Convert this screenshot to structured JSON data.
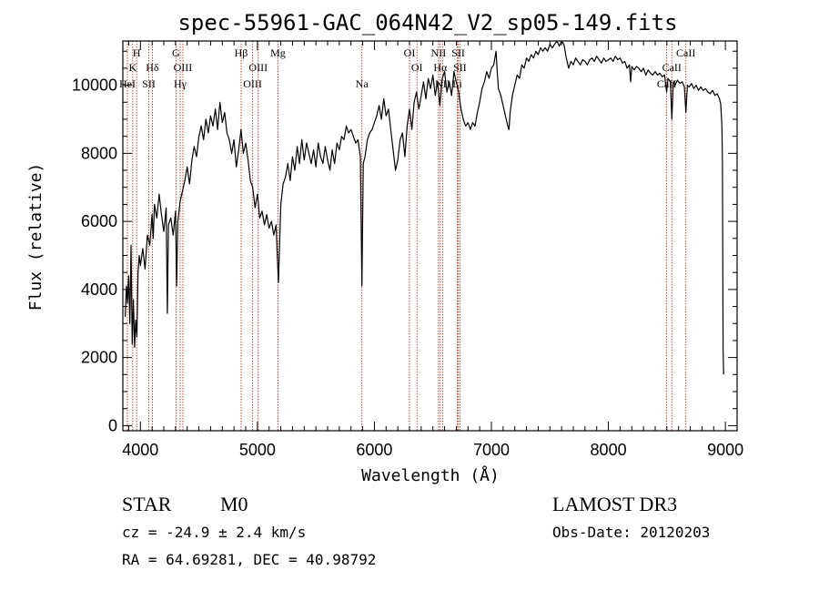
{
  "chart_data": {
    "type": "line",
    "title": "spec-55961-GAC_064N42_V2_sp05-149.fits",
    "xlabel": "Wavelength (Å)",
    "ylabel": "Flux (relative)",
    "xlim": [
      3850,
      9100
    ],
    "ylim": [
      -150,
      11300
    ],
    "x_ticks": [
      4000,
      5000,
      6000,
      7000,
      8000,
      9000
    ],
    "y_ticks": [
      0,
      2000,
      4000,
      6000,
      8000,
      10000
    ],
    "grid": false,
    "series": [
      {
        "color": "#000000",
        "points": [
          [
            3870,
            3200
          ],
          [
            3880,
            4100
          ],
          [
            3890,
            3600
          ],
          [
            3900,
            4400
          ],
          [
            3910,
            3000
          ],
          [
            3920,
            5300
          ],
          [
            3930,
            2400
          ],
          [
            3940,
            3700
          ],
          [
            3950,
            2300
          ],
          [
            3960,
            3100
          ],
          [
            3970,
            2600
          ],
          [
            3980,
            4500
          ],
          [
            3990,
            5000
          ],
          [
            4000,
            4700
          ],
          [
            4020,
            5200
          ],
          [
            4040,
            4600
          ],
          [
            4060,
            5600
          ],
          [
            4080,
            5300
          ],
          [
            4100,
            6200
          ],
          [
            4110,
            5500
          ],
          [
            4120,
            6500
          ],
          [
            4140,
            6100
          ],
          [
            4160,
            6800
          ],
          [
            4180,
            6200
          ],
          [
            4200,
            5700
          ],
          [
            4220,
            6400
          ],
          [
            4230,
            3300
          ],
          [
            4240,
            5900
          ],
          [
            4260,
            6100
          ],
          [
            4280,
            5600
          ],
          [
            4300,
            6300
          ],
          [
            4310,
            4100
          ],
          [
            4320,
            6000
          ],
          [
            4340,
            6600
          ],
          [
            4360,
            6900
          ],
          [
            4380,
            7200
          ],
          [
            4400,
            7600
          ],
          [
            4420,
            7100
          ],
          [
            4440,
            7800
          ],
          [
            4460,
            8200
          ],
          [
            4480,
            7900
          ],
          [
            4500,
            8500
          ],
          [
            4520,
            8800
          ],
          [
            4540,
            8400
          ],
          [
            4560,
            9000
          ],
          [
            4580,
            8600
          ],
          [
            4600,
            9100
          ],
          [
            4620,
            8800
          ],
          [
            4640,
            9300
          ],
          [
            4660,
            8700
          ],
          [
            4680,
            9500
          ],
          [
            4700,
            8900
          ],
          [
            4720,
            9200
          ],
          [
            4740,
            8600
          ],
          [
            4760,
            8400
          ],
          [
            4780,
            8000
          ],
          [
            4800,
            8400
          ],
          [
            4820,
            7600
          ],
          [
            4840,
            8100
          ],
          [
            4860,
            8700
          ],
          [
            4880,
            8000
          ],
          [
            4900,
            8300
          ],
          [
            4920,
            7800
          ],
          [
            4940,
            7200
          ],
          [
            4960,
            7000
          ],
          [
            4980,
            6400
          ],
          [
            5000,
            6800
          ],
          [
            5020,
            6100
          ],
          [
            5040,
            6300
          ],
          [
            5060,
            5900
          ],
          [
            5080,
            6200
          ],
          [
            5100,
            5800
          ],
          [
            5120,
            6000
          ],
          [
            5140,
            5600
          ],
          [
            5160,
            5900
          ],
          [
            5170,
            5000
          ],
          [
            5180,
            4200
          ],
          [
            5190,
            5400
          ],
          [
            5200,
            6500
          ],
          [
            5220,
            7100
          ],
          [
            5240,
            7300
          ],
          [
            5260,
            7700
          ],
          [
            5280,
            7200
          ],
          [
            5300,
            7900
          ],
          [
            5320,
            7500
          ],
          [
            5340,
            8200
          ],
          [
            5360,
            7700
          ],
          [
            5380,
            8400
          ],
          [
            5400,
            7800
          ],
          [
            5420,
            8300
          ],
          [
            5440,
            8000
          ],
          [
            5460,
            7700
          ],
          [
            5480,
            8100
          ],
          [
            5500,
            7600
          ],
          [
            5520,
            8300
          ],
          [
            5540,
            7900
          ],
          [
            5560,
            7700
          ],
          [
            5580,
            8200
          ],
          [
            5600,
            7800
          ],
          [
            5620,
            7500
          ],
          [
            5640,
            8100
          ],
          [
            5660,
            7700
          ],
          [
            5680,
            8300
          ],
          [
            5700,
            8100
          ],
          [
            5720,
            8500
          ],
          [
            5740,
            8400
          ],
          [
            5760,
            8800
          ],
          [
            5780,
            8600
          ],
          [
            5800,
            8700
          ],
          [
            5820,
            8500
          ],
          [
            5840,
            8300
          ],
          [
            5860,
            8400
          ],
          [
            5880,
            7900
          ],
          [
            5893,
            4100
          ],
          [
            5905,
            7700
          ],
          [
            5920,
            7900
          ],
          [
            5940,
            8400
          ],
          [
            5960,
            8600
          ],
          [
            5980,
            8700
          ],
          [
            6000,
            8900
          ],
          [
            6020,
            9100
          ],
          [
            6040,
            9400
          ],
          [
            6060,
            9000
          ],
          [
            6080,
            9600
          ],
          [
            6100,
            9100
          ],
          [
            6120,
            9300
          ],
          [
            6140,
            8700
          ],
          [
            6160,
            8100
          ],
          [
            6180,
            7500
          ],
          [
            6200,
            7800
          ],
          [
            6220,
            8400
          ],
          [
            6240,
            8600
          ],
          [
            6260,
            7900
          ],
          [
            6280,
            8800
          ],
          [
            6300,
            9300
          ],
          [
            6320,
            8700
          ],
          [
            6340,
            9500
          ],
          [
            6360,
            9800
          ],
          [
            6380,
            9300
          ],
          [
            6400,
            9700
          ],
          [
            6420,
            10100
          ],
          [
            6440,
            9600
          ],
          [
            6460,
            10200
          ],
          [
            6480,
            9900
          ],
          [
            6500,
            10300
          ],
          [
            6520,
            9700
          ],
          [
            6540,
            10100
          ],
          [
            6560,
            9400
          ],
          [
            6580,
            10200
          ],
          [
            6600,
            10400
          ],
          [
            6620,
            9800
          ],
          [
            6640,
            10100
          ],
          [
            6660,
            9700
          ],
          [
            6680,
            10400
          ],
          [
            6700,
            10100
          ],
          [
            6720,
            9800
          ],
          [
            6740,
            9300
          ],
          [
            6760,
            9000
          ],
          [
            6780,
            8800
          ],
          [
            6800,
            8900
          ],
          [
            6820,
            8700
          ],
          [
            6840,
            8900
          ],
          [
            6860,
            8800
          ],
          [
            6880,
            9200
          ],
          [
            6900,
            9500
          ],
          [
            6920,
            9900
          ],
          [
            6940,
            10100
          ],
          [
            6960,
            10400
          ],
          [
            6980,
            10200
          ],
          [
            7000,
            10500
          ],
          [
            7020,
            10600
          ],
          [
            7040,
            11000
          ],
          [
            7050,
            10400
          ],
          [
            7060,
            9900
          ],
          [
            7080,
            9700
          ],
          [
            7100,
            9400
          ],
          [
            7120,
            9100
          ],
          [
            7140,
            8800
          ],
          [
            7150,
            8700
          ],
          [
            7160,
            9200
          ],
          [
            7180,
            9700
          ],
          [
            7200,
            10000
          ],
          [
            7220,
            10300
          ],
          [
            7240,
            10200
          ],
          [
            7260,
            10600
          ],
          [
            7280,
            10500
          ],
          [
            7300,
            10800
          ],
          [
            7320,
            10700
          ],
          [
            7340,
            10900
          ],
          [
            7360,
            10800
          ],
          [
            7380,
            11000
          ],
          [
            7400,
            10900
          ],
          [
            7420,
            11100
          ],
          [
            7440,
            11000
          ],
          [
            7460,
            11100
          ],
          [
            7480,
            11000
          ],
          [
            7500,
            11200
          ],
          [
            7520,
            11100
          ],
          [
            7540,
            11200
          ],
          [
            7560,
            11300
          ],
          [
            7580,
            11150
          ],
          [
            7600,
            11300
          ],
          [
            7620,
            11200
          ],
          [
            7640,
            10800
          ],
          [
            7660,
            10500
          ],
          [
            7680,
            10700
          ],
          [
            7700,
            10600
          ],
          [
            7720,
            10800
          ],
          [
            7740,
            10700
          ],
          [
            7760,
            10600
          ],
          [
            7780,
            10750
          ],
          [
            7800,
            10700
          ],
          [
            7820,
            10600
          ],
          [
            7840,
            10750
          ],
          [
            7860,
            10800
          ],
          [
            7880,
            10700
          ],
          [
            7900,
            10850
          ],
          [
            7920,
            10750
          ],
          [
            7940,
            10650
          ],
          [
            7960,
            10800
          ],
          [
            7980,
            10700
          ],
          [
            8000,
            10750
          ],
          [
            8020,
            10800
          ],
          [
            8040,
            10700
          ],
          [
            8060,
            10850
          ],
          [
            8080,
            10750
          ],
          [
            8100,
            10800
          ],
          [
            8120,
            10650
          ],
          [
            8140,
            10700
          ],
          [
            8160,
            10500
          ],
          [
            8180,
            10600
          ],
          [
            8190,
            10100
          ],
          [
            8200,
            10550
          ],
          [
            8220,
            10450
          ],
          [
            8240,
            10550
          ],
          [
            8260,
            10500
          ],
          [
            8280,
            10400
          ],
          [
            8300,
            10500
          ],
          [
            8320,
            10300
          ],
          [
            8340,
            10450
          ],
          [
            8360,
            10350
          ],
          [
            8380,
            10300
          ],
          [
            8400,
            10400
          ],
          [
            8420,
            10300
          ],
          [
            8440,
            10350
          ],
          [
            8460,
            10250
          ],
          [
            8480,
            10300
          ],
          [
            8498,
            9800
          ],
          [
            8510,
            10200
          ],
          [
            8530,
            10100
          ],
          [
            8542,
            9000
          ],
          [
            8555,
            10100
          ],
          [
            8570,
            10000
          ],
          [
            8590,
            10150
          ],
          [
            8610,
            10050
          ],
          [
            8630,
            10100
          ],
          [
            8650,
            9950
          ],
          [
            8662,
            9200
          ],
          [
            8675,
            10000
          ],
          [
            8690,
            9950
          ],
          [
            8710,
            10050
          ],
          [
            8730,
            9900
          ],
          [
            8750,
            10000
          ],
          [
            8770,
            9850
          ],
          [
            8790,
            9950
          ],
          [
            8810,
            9850
          ],
          [
            8830,
            9900
          ],
          [
            8850,
            9800
          ],
          [
            8870,
            9750
          ],
          [
            8890,
            9850
          ],
          [
            8910,
            9700
          ],
          [
            8930,
            9750
          ],
          [
            8950,
            9600
          ],
          [
            8960,
            9450
          ],
          [
            8970,
            8800
          ],
          [
            8975,
            7700
          ],
          [
            8980,
            2300
          ],
          [
            8985,
            1500
          ]
        ]
      }
    ],
    "annotations": [
      {
        "wavelength": 3889,
        "label": "HeI",
        "row": 3
      },
      {
        "wavelength": 3934,
        "label": "K",
        "row": 2
      },
      {
        "wavelength": 3968,
        "label": "H",
        "row": 1
      },
      {
        "wavelength": 4072,
        "label": "SII",
        "row": 3
      },
      {
        "wavelength": 4102,
        "label": "Hδ",
        "row": 2
      },
      {
        "wavelength": 4304,
        "label": "G",
        "row": 1
      },
      {
        "wavelength": 4340,
        "label": "Hγ",
        "row": 3
      },
      {
        "wavelength": 4363,
        "label": "OIII",
        "row": 2
      },
      {
        "wavelength": 4861,
        "label": "Hβ",
        "row": 1
      },
      {
        "wavelength": 4959,
        "label": "OIII",
        "row": 3
      },
      {
        "wavelength": 5007,
        "label": "OIII",
        "row": 2
      },
      {
        "wavelength": 5176,
        "label": "Mg",
        "row": 1
      },
      {
        "wavelength": 5893,
        "label": "Na",
        "row": 3
      },
      {
        "wavelength": 6300,
        "label": "OI",
        "row": 1
      },
      {
        "wavelength": 6364,
        "label": "OI",
        "row": 2
      },
      {
        "wavelength": 6548,
        "label": "NII",
        "row": 1
      },
      {
        "wavelength": 6563,
        "label": "Hα",
        "row": 2
      },
      {
        "wavelength": 6583,
        "label": "NII",
        "row": 3
      },
      {
        "wavelength": 6708,
        "label": "Li",
        "row": 3
      },
      {
        "wavelength": 6717,
        "label": "SII",
        "row": 1
      },
      {
        "wavelength": 6731,
        "label": "SII",
        "row": 2
      },
      {
        "wavelength": 8498,
        "label": "CaII",
        "row": 3
      },
      {
        "wavelength": 8542,
        "label": "CaII",
        "row": 2
      },
      {
        "wavelength": 8662,
        "label": "CaII",
        "row": 1
      }
    ],
    "annotation_line_color": "#c0392b"
  },
  "info": {
    "class": "STAR",
    "subclass": "M0",
    "survey": "LAMOST DR3",
    "cz": "cz = -24.9 ± 2.4 km/s",
    "obs_date": "Obs-Date: 20120203",
    "radec": "RA =  64.69281, DEC =  40.98792"
  }
}
